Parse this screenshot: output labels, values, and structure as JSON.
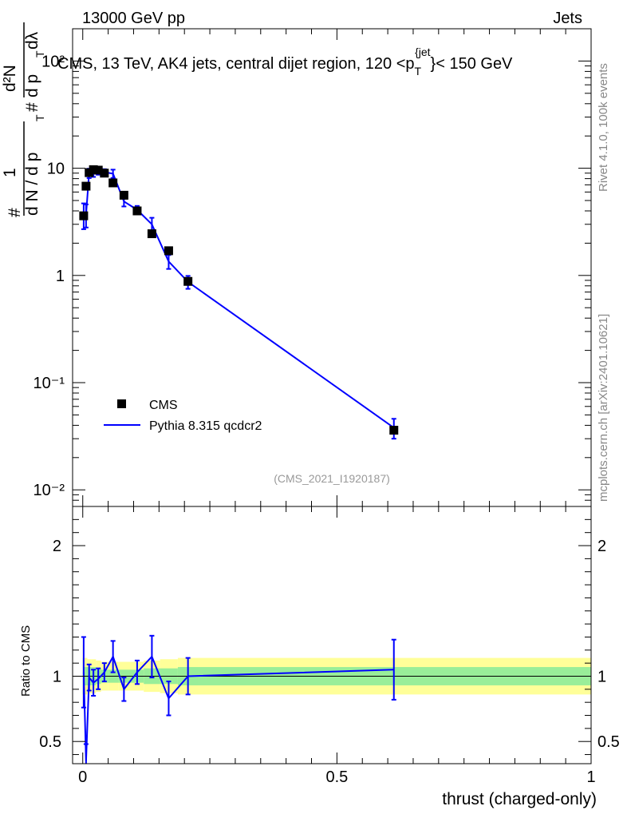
{
  "header": {
    "energy_label": "13000 GeV pp",
    "category_label": "Jets"
  },
  "side_labels": {
    "rivet": "Rivet 4.1.0,  100k events",
    "mcplots": "mcplots.cern.ch [arXiv:2401.10621]"
  },
  "ylabel_parts": {
    "numerator_1": "1",
    "denominator_1": "d N / d p",
    "sub_T": "T",
    "hash": "#",
    "numerator_2": "d²N",
    "denominator_2": "d p",
    "denominator_2b": "dλ",
    "sup_2": "2"
  },
  "ratio_ylabel": "Ratio to CMS",
  "xlabel": "thrust (charged-only)",
  "chart_data": {
    "type": "line",
    "title": "CMS, 13 TeV, AK4 jets, central dijet region, 120 < p_T^{jet} < 150 GeV",
    "title_parts": {
      "left": "CMS, 13 TeV, AK4 jets, central dijet region, 120 <p",
      "sub": "T",
      "sup": "{jet",
      "close": "}",
      "right": "< 150 GeV"
    },
    "analysis_id": "(CMS_2021_I1920187)",
    "main_panel": {
      "yscale": "log",
      "ylim": [
        0.007,
        200
      ],
      "y_tick_labels": [
        "10⁻²",
        "10⁻¹",
        "1",
        "10",
        "10²"
      ],
      "y_tick_values": [
        0.01,
        0.1,
        1,
        10,
        100
      ],
      "xlim": [
        -0.02,
        1.0
      ],
      "series": [
        {
          "name": "CMS",
          "style": "markers",
          "color": "#000000",
          "x": [
            0.0018,
            0.0065,
            0.0125,
            0.021,
            0.0305,
            0.0425,
            0.0595,
            0.081,
            0.107,
            0.136,
            0.169,
            0.207,
            0.612
          ],
          "y": [
            3.6,
            6.8,
            9.1,
            9.7,
            9.6,
            9.0,
            7.3,
            5.6,
            4.0,
            2.45,
            1.7,
            0.88,
            0.036
          ]
        },
        {
          "name": "Pythia 8.315 qcdcr2",
          "style": "line",
          "color": "#0000ff",
          "x": [
            0.0018,
            0.0065,
            0.0125,
            0.021,
            0.0305,
            0.0425,
            0.0595,
            0.081,
            0.107,
            0.136,
            0.169,
            0.207,
            0.612
          ],
          "y": [
            3.7,
            3.7,
            9.0,
            9.2,
            9.4,
            9.2,
            8.9,
            4.9,
            4.1,
            3.0,
            1.35,
            0.87,
            0.038
          ],
          "yerr": [
            1.0,
            0.9,
            0.9,
            0.9,
            0.7,
            0.6,
            0.8,
            0.5,
            0.35,
            0.45,
            0.2,
            0.12,
            0.008
          ]
        }
      ]
    },
    "ratio_panel": {
      "ylim": [
        0.33,
        2.3
      ],
      "y_tick_labels": [
        "0.5",
        "1",
        "2"
      ],
      "y_tick_values": [
        0.5,
        1,
        2
      ],
      "x_tick_labels": [
        "0",
        "0.5",
        "1"
      ],
      "x_tick_values": [
        0,
        0.5,
        1
      ],
      "band_edges": [
        0.0,
        0.003,
        0.009,
        0.017,
        0.026,
        0.036,
        0.05,
        0.07,
        0.093,
        0.12,
        0.152,
        0.187,
        0.228,
        1.0
      ],
      "inner_band_halfwidth": [
        0.14,
        0.07,
        0.07,
        0.07,
        0.06,
        0.05,
        0.05,
        0.05,
        0.05,
        0.06,
        0.06,
        0.07,
        0.07
      ],
      "outer_band_halfwidth": [
        0.24,
        0.14,
        0.13,
        0.13,
        0.12,
        0.11,
        0.11,
        0.11,
        0.11,
        0.12,
        0.13,
        0.14,
        0.14
      ],
      "series": [
        {
          "name": "Pythia 8.315 qcdcr2 / CMS",
          "color": "#0000ff",
          "x": [
            0.0018,
            0.0065,
            0.0125,
            0.021,
            0.0305,
            0.0425,
            0.0595,
            0.081,
            0.107,
            0.136,
            0.169,
            0.207,
            0.612
          ],
          "y": [
            1.03,
            0.35,
            0.99,
            0.95,
            0.98,
            1.03,
            1.15,
            0.9,
            1.03,
            1.15,
            0.83,
            1.0,
            1.05
          ],
          "yerr": [
            0.27,
            0.13,
            0.1,
            0.1,
            0.08,
            0.07,
            0.12,
            0.09,
            0.09,
            0.16,
            0.13,
            0.14,
            0.23
          ]
        }
      ]
    },
    "legend": [
      "CMS",
      "Pythia 8.315 qcdcr2"
    ],
    "legend_position": "lower-left"
  }
}
